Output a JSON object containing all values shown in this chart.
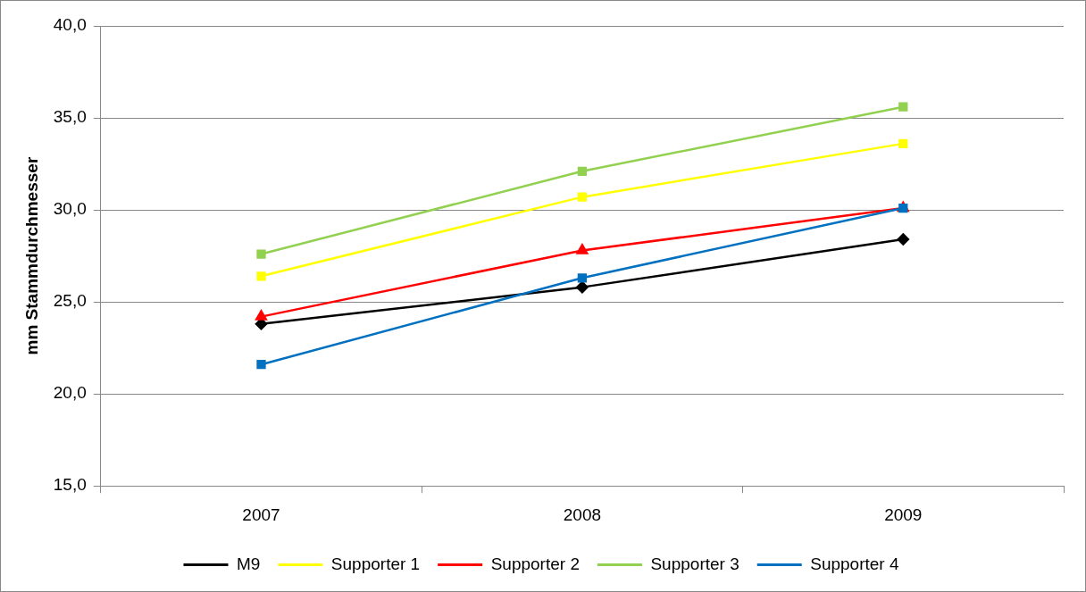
{
  "chart_data": {
    "type": "line",
    "ylabel": "mm Stammdurchmesser",
    "categories": [
      "2007",
      "2008",
      "2009"
    ],
    "series": [
      {
        "name": "M9",
        "color": "#000000",
        "marker": "diamond",
        "values": [
          23.8,
          25.8,
          28.4
        ]
      },
      {
        "name": "Supporter 1",
        "color": "#ffff00",
        "marker": "square",
        "values": [
          26.4,
          30.7,
          33.6
        ]
      },
      {
        "name": "Supporter 2",
        "color": "#ff0000",
        "marker": "triangle",
        "values": [
          24.2,
          27.8,
          30.1
        ]
      },
      {
        "name": "Supporter 3",
        "color": "#92d050",
        "marker": "square",
        "values": [
          27.6,
          32.1,
          35.6
        ]
      },
      {
        "name": "Supporter 4",
        "color": "#0070c0",
        "marker": "square",
        "values": [
          21.6,
          26.3,
          30.1
        ]
      }
    ],
    "ylim": [
      15,
      40
    ],
    "yticks": [
      {
        "value": 15,
        "label": "15,0"
      },
      {
        "value": 20,
        "label": "20,0"
      },
      {
        "value": 25,
        "label": "25,0"
      },
      {
        "value": 30,
        "label": "30,0"
      },
      {
        "value": 35,
        "label": "35,0"
      },
      {
        "value": 40,
        "label": "40,0"
      }
    ],
    "grid": "y",
    "legend": "bottom",
    "line_style": "solid"
  }
}
